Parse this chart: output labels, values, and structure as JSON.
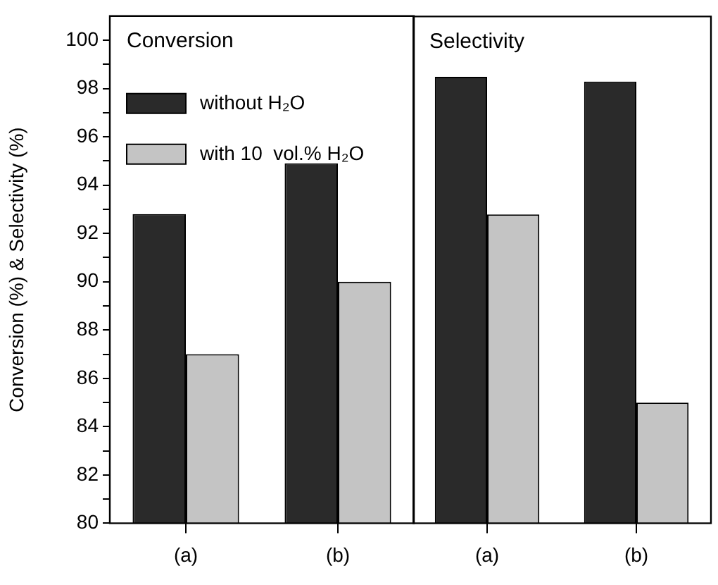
{
  "chart_data": [
    {
      "type": "bar",
      "title": "Conversion",
      "ylabel": "Conversion (%) & Selectivity (%)",
      "categories": [
        "(a)",
        "(b)"
      ],
      "series": [
        {
          "name": "without H₂O",
          "color": "#2a2a2a",
          "values": [
            92.8,
            94.9
          ]
        },
        {
          "name": "with 10  vol.% H₂O",
          "color": "#c4c4c4",
          "values": [
            87.0,
            90.0
          ]
        }
      ],
      "ylim": [
        80,
        101
      ],
      "yticks": [
        80,
        {
          "value": 81,
          "label": null
        },
        82,
        {
          "value": 83,
          "label": null
        },
        84,
        {
          "value": 85,
          "label": null
        },
        86,
        {
          "value": 87,
          "label": null
        },
        88,
        {
          "value": 89,
          "label": null
        },
        90,
        {
          "value": 91,
          "label": null
        },
        92,
        {
          "value": 93,
          "label": null
        },
        94,
        {
          "value": 95,
          "label": null
        },
        96,
        {
          "value": 97,
          "label": null
        },
        98,
        {
          "value": 99,
          "label": null
        },
        100
      ],
      "legend": "top left"
    },
    {
      "type": "bar",
      "title": "Selectivity",
      "categories": [
        "(a)",
        "(b)"
      ],
      "series": [
        {
          "color": "#2a2a2a",
          "values": [
            98.5,
            98.3
          ]
        },
        {
          "color": "#c4c4c4",
          "values": [
            92.8,
            85.0
          ]
        }
      ],
      "ylim": [
        80,
        101
      ],
      "yticks": [
        80,
        82,
        84,
        86,
        88,
        90,
        92,
        94,
        96,
        98,
        100
      ],
      "tick_labels": "x"
    }
  ]
}
